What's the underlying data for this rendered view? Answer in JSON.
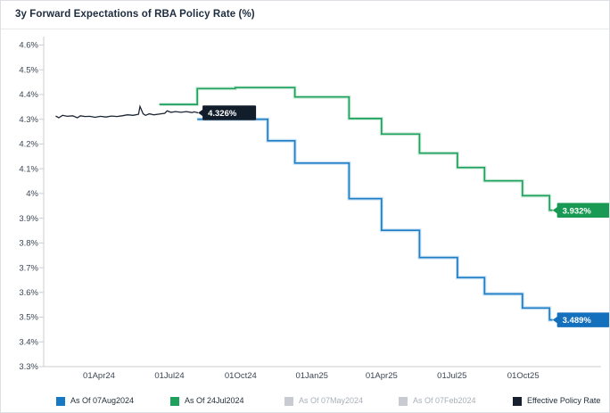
{
  "window": {
    "title": "3y Forward Expectations of RBA Policy Rate (%)"
  },
  "chart_data": {
    "type": "line",
    "title": "3y Forward Expectations of RBA Policy Rate (%)",
    "grid": false,
    "legend_position": "bottom",
    "y_axis": {
      "min": 3.3,
      "max": 4.6,
      "tick_step": 0.1,
      "unit": "%",
      "ticks": [
        "4.6%",
        "4.5%",
        "4.4%",
        "4.3%",
        "4.2%",
        "4.1%",
        "4%",
        "3.9%",
        "3.8%",
        "3.7%",
        "3.6%",
        "3.5%",
        "3.4%",
        "3.3%"
      ]
    },
    "x_axis": {
      "ticks": [
        {
          "label": "01Apr24",
          "date": "2024-04-01"
        },
        {
          "label": "01Jul24",
          "date": "2024-07-01"
        },
        {
          "label": "01Oct24",
          "date": "2024-10-01"
        },
        {
          "label": "01Jan25",
          "date": "2025-01-01"
        },
        {
          "label": "01Apr25",
          "date": "2025-04-01"
        },
        {
          "label": "01Jul25",
          "date": "2025-07-01"
        },
        {
          "label": "01Oct25",
          "date": "2025-10-01"
        }
      ]
    },
    "series": [
      {
        "name": "As Of 07Aug2024",
        "type": "step",
        "visible": true,
        "color": "#1e7ec6",
        "halo": "#a6cfeb",
        "end_label": "3.489%",
        "label_bg": "#1470bd",
        "points": [
          [
            "2024-08-06",
            4.3
          ],
          [
            "2024-11-05",
            4.213
          ],
          [
            "2024-12-10",
            4.123
          ],
          [
            "2025-02-18",
            3.979
          ],
          [
            "2025-04-01",
            3.851
          ],
          [
            "2025-05-20",
            3.741
          ],
          [
            "2025-07-08",
            3.66
          ],
          [
            "2025-08-12",
            3.594
          ],
          [
            "2025-09-30",
            3.537
          ],
          [
            "2025-11-04",
            3.489
          ],
          [
            "2025-11-08",
            3.489
          ]
        ]
      },
      {
        "name": "As Of 24Jul2024",
        "type": "step",
        "visible": true,
        "color": "#1da25e",
        "halo": "#b8e0ca",
        "end_label": "3.932%",
        "label_bg": "#189a54",
        "points": [
          [
            "2024-06-18",
            4.36
          ],
          [
            "2024-08-06",
            4.424
          ],
          [
            "2024-09-24",
            4.428
          ],
          [
            "2024-12-10",
            4.39
          ],
          [
            "2025-02-18",
            4.303
          ],
          [
            "2025-04-01",
            4.24
          ],
          [
            "2025-05-20",
            4.163
          ],
          [
            "2025-07-08",
            4.105
          ],
          [
            "2025-08-12",
            4.051
          ],
          [
            "2025-09-30",
            3.991
          ],
          [
            "2025-11-04",
            3.932
          ],
          [
            "2025-11-08",
            3.932
          ]
        ]
      },
      {
        "name": "As Of 07May2024",
        "type": "step",
        "visible": false,
        "color": "#c8ccd2",
        "points": []
      },
      {
        "name": "As Of 07Feb2024",
        "type": "step",
        "visible": false,
        "color": "#c8ccd2",
        "points": []
      },
      {
        "name": "Effective Policy Rate",
        "type": "line",
        "visible": true,
        "color": "#1b2533",
        "end_label": "4.326%",
        "label_bg": "#121d2c",
        "points": [
          [
            "2024-02-05",
            4.313
          ],
          [
            "2024-02-09",
            4.306
          ],
          [
            "2024-02-14",
            4.316
          ],
          [
            "2024-02-20",
            4.312
          ],
          [
            "2024-02-27",
            4.314
          ],
          [
            "2024-03-04",
            4.306
          ],
          [
            "2024-03-08",
            4.314
          ],
          [
            "2024-03-14",
            4.311
          ],
          [
            "2024-03-20",
            4.312
          ],
          [
            "2024-03-27",
            4.308
          ],
          [
            "2024-04-03",
            4.312
          ],
          [
            "2024-04-10",
            4.309
          ],
          [
            "2024-04-17",
            4.313
          ],
          [
            "2024-04-24",
            4.311
          ],
          [
            "2024-05-01",
            4.314
          ],
          [
            "2024-05-08",
            4.318
          ],
          [
            "2024-05-15",
            4.316
          ],
          [
            "2024-05-22",
            4.32
          ],
          [
            "2024-05-24",
            4.352
          ],
          [
            "2024-05-28",
            4.322
          ],
          [
            "2024-05-31",
            4.316
          ],
          [
            "2024-06-05",
            4.322
          ],
          [
            "2024-06-11",
            4.318
          ],
          [
            "2024-06-18",
            4.321
          ],
          [
            "2024-06-25",
            4.324
          ],
          [
            "2024-06-28",
            4.334
          ],
          [
            "2024-07-03",
            4.328
          ],
          [
            "2024-07-09",
            4.331
          ],
          [
            "2024-07-16",
            4.328
          ],
          [
            "2024-07-23",
            4.331
          ],
          [
            "2024-07-30",
            4.327
          ],
          [
            "2024-08-02",
            4.33
          ],
          [
            "2024-08-07",
            4.326
          ]
        ]
      }
    ]
  },
  "legend": {
    "items": [
      {
        "label": "As Of 07Aug2024",
        "swatch": "#1779c4",
        "text_color": "#232f3b",
        "enabled": true
      },
      {
        "label": "As Of 24Jul2024",
        "swatch": "#1ea15c",
        "text_color": "#232f3b",
        "enabled": true
      },
      {
        "label": "As Of 07May2024",
        "swatch": "#c8ccd2",
        "text_color": "#a9b0b9",
        "enabled": false
      },
      {
        "label": "As Of 07Feb2024",
        "swatch": "#c8ccd2",
        "text_color": "#a9b0b9",
        "enabled": false
      },
      {
        "label": "Effective Policy Rate",
        "swatch": "#17202e",
        "text_color": "#232f3b",
        "enabled": true
      }
    ]
  }
}
